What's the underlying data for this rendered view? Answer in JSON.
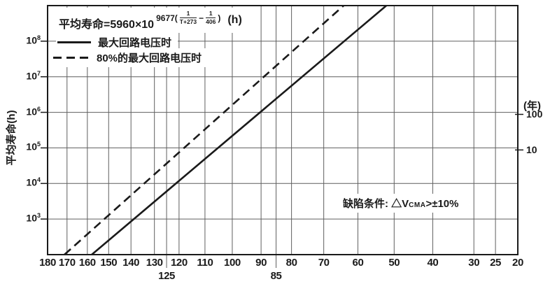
{
  "chart_data": {
    "type": "line",
    "description": "Arrhenius life expectancy chart: mean life (hours, log scale) vs temperature (reciprocal-absolute-temperature scale)",
    "formula": {
      "prefix": "平均寿命=5960×10",
      "sup_open": "9677(",
      "frac1_num": "1",
      "frac1_den": "T+273",
      "sup_minus": "−",
      "frac2_num": "1",
      "frac2_den": "406",
      "sup_close": ")",
      "unit": "(h)"
    },
    "legend": [
      {
        "style": "solid",
        "label": "最大回路电压时"
      },
      {
        "style": "dashed",
        "label": "80%的最大回路电压时"
      }
    ],
    "annotation": {
      "prefix": "缺陷条件: △V",
      "sub": "CMA",
      "suffix": ">±10%"
    },
    "x_axis": {
      "scale": "inverse-absolute-temperature",
      "unit": "°C",
      "t_max": 180,
      "t_min": 20,
      "grid_temps": [
        180,
        170,
        160,
        150,
        140,
        130,
        125,
        120,
        110,
        100,
        90,
        85,
        80,
        70,
        60,
        50,
        40,
        30,
        25,
        20
      ],
      "tick_temps_row1": [
        180,
        170,
        160,
        150,
        140,
        130,
        120,
        110,
        100,
        90,
        80,
        70,
        60,
        50,
        40,
        30,
        25,
        20
      ],
      "tick_temps_row2": [
        125,
        85
      ]
    },
    "y_axis": {
      "scale": "log10",
      "unit_label": "平均寿命(h)",
      "base": "10",
      "min_exp": 2,
      "max_exp": 9,
      "tick_exps": [
        8,
        7,
        6,
        5,
        4,
        3
      ]
    },
    "right_axis": {
      "unit_label": "(年)",
      "ticks": [
        {
          "label": "100",
          "hours": 876000
        },
        {
          "label": "10",
          "hours": 87600
        }
      ]
    },
    "series": [
      {
        "name": "最大回路电压时",
        "style": "solid",
        "points": [
          {
            "temp_c": 157.9,
            "hours": 100
          },
          {
            "temp_c": 52.1,
            "hours": 1000000000
          }
        ]
      },
      {
        "name": "80%的最大回路电压时",
        "style": "dashed",
        "points": [
          {
            "temp_c": 171.3,
            "hours": 100
          },
          {
            "temp_c": 64.1,
            "hours": 1000000000
          }
        ]
      }
    ],
    "colors": {
      "line": "#1a1a1a",
      "grid": "#5f5f5f",
      "background": "#ffffff",
      "text": "#1a1a1a"
    }
  }
}
